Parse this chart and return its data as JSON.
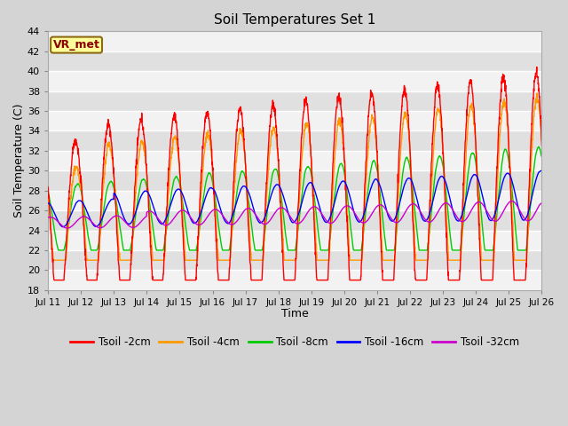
{
  "title": "Soil Temperatures Set 1",
  "xlabel": "Time",
  "ylabel": "Soil Temperature (C)",
  "ylim": [
    18,
    44
  ],
  "yticks": [
    18,
    20,
    22,
    24,
    26,
    28,
    30,
    32,
    34,
    36,
    38,
    40,
    42,
    44
  ],
  "x_tick_labels": [
    "Jul 11",
    "Jul 12",
    "Jul 13",
    "Jul 14",
    "Jul 15",
    "Jul 16",
    "Jul 17",
    "Jul 18",
    "Jul 19",
    "Jul 20",
    "Jul 21",
    "Jul 22",
    "Jul 23",
    "Jul 24",
    "Jul 25",
    "Jul 26"
  ],
  "series_colors": {
    "2cm": "#ff0000",
    "4cm": "#ff9900",
    "8cm": "#00cc00",
    "16cm": "#0000ff",
    "32cm": "#cc00cc"
  },
  "series_labels": [
    "Tsoil -2cm",
    "Tsoil -4cm",
    "Tsoil -8cm",
    "Tsoil -16cm",
    "Tsoil -32cm"
  ],
  "annotation_text": "VR_met",
  "annotation_bg": "#ffff99",
  "annotation_border": "#8b6914",
  "n_days": 15,
  "points_per_day": 144,
  "stripe_light": "#f2f2f2",
  "stripe_dark": "#e0e0e0",
  "fig_bg": "#d4d4d4"
}
